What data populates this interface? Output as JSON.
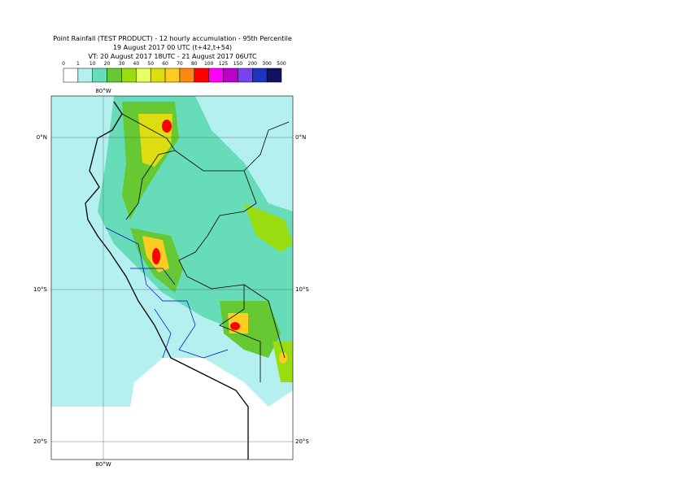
{
  "header": {
    "title": "Point Rainfall (TEST PRODUCT) - 12 hourly accumulation - 95th Percentile",
    "base_time": "19 August 2017 00 UTC (t+42,t+54)",
    "validity": "VT: 20 August 2017 18UTC - 21 August 2017 06UTC"
  },
  "legend": {
    "bounds": [
      0,
      1,
      10,
      20,
      30,
      40,
      50,
      60,
      70,
      80,
      100,
      125,
      150,
      200,
      300,
      500
    ],
    "colors": [
      "#ffffff",
      "#b4f0f0",
      "#66ddb8",
      "#66c833",
      "#99dd11",
      "#e6ff66",
      "#dddd11",
      "#ffcc22",
      "#ff8811",
      "#ff0000",
      "#ff00ff",
      "#bb00cc",
      "#7744ee",
      "#2233bb",
      "#111166"
    ]
  },
  "map": {
    "lon_label": "80°W",
    "lat_labels": [
      "0°N",
      "10°S",
      "20°S"
    ]
  }
}
